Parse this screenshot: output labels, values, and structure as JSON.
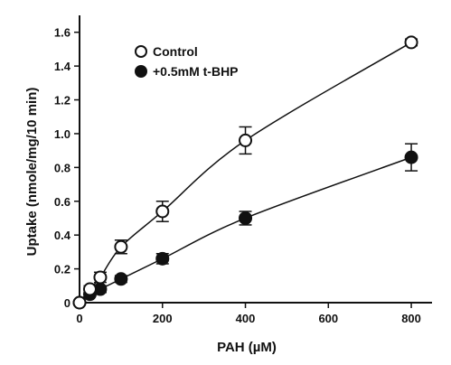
{
  "chart_data": {
    "type": "scatter",
    "xlabel": "PAH (µM)",
    "ylabel": "Uptake (nmole/mg/10 min)",
    "xlim": [
      0,
      850
    ],
    "ylim": [
      0,
      1.7
    ],
    "x_ticks": [
      0,
      200,
      400,
      600,
      800
    ],
    "y_ticks": [
      0,
      0.2,
      0.4,
      0.6,
      0.8,
      1.0,
      1.2,
      1.4,
      1.6
    ],
    "x_tick_labels": [
      "0",
      "200",
      "400",
      "600",
      "800"
    ],
    "y_tick_labels": [
      "0",
      "0.2",
      "0.4",
      "0.6",
      "0.8",
      "1.0",
      "1.2",
      "1.4",
      "1.6"
    ],
    "grid": false,
    "legend_position": "top-left",
    "series": [
      {
        "name": "Control",
        "marker": "open-circle",
        "color": "#111111",
        "x": [
          0,
          25,
          50,
          100,
          200,
          400,
          800
        ],
        "y": [
          0,
          0.08,
          0.15,
          0.33,
          0.54,
          0.96,
          1.54
        ],
        "error": [
          0,
          0.02,
          0.03,
          0.04,
          0.06,
          0.08,
          0.02
        ]
      },
      {
        "name": "+0.5mM t-BHP",
        "marker": "filled-circle",
        "color": "#111111",
        "x": [
          0,
          25,
          50,
          100,
          200,
          400,
          800
        ],
        "y": [
          0,
          0.05,
          0.08,
          0.14,
          0.26,
          0.5,
          0.86
        ],
        "error": [
          0,
          0.01,
          0.02,
          0.02,
          0.03,
          0.04,
          0.08
        ]
      }
    ]
  }
}
